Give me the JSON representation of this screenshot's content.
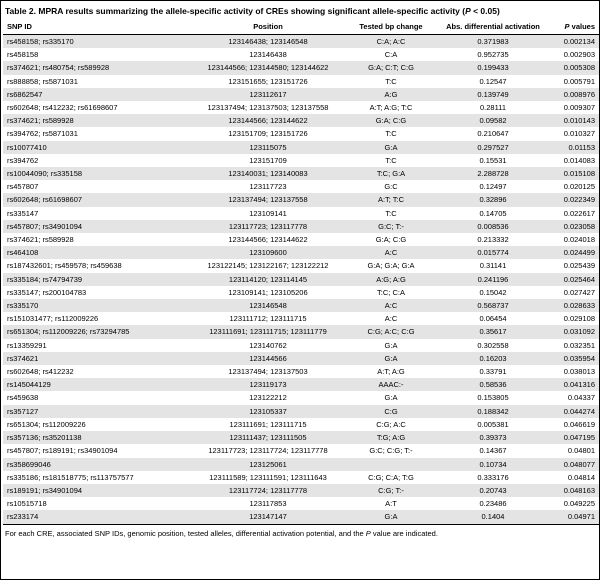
{
  "table": {
    "title_pre": "Table 2. MPRA results summarizing the allele-specific activity of CREs showing significant allele-specific activity (",
    "title_italic": "P",
    "title_post": " < 0.05)",
    "columns": {
      "snp": "SNP ID",
      "position": "Position",
      "tested": "Tested bp change",
      "abs": "Abs. differential activation",
      "p_italic": "P",
      "p_rest": " values"
    },
    "rows": [
      [
        "rs458158; rs335170",
        "123146438; 123146548",
        "C:A; A:C",
        "0.371983",
        "0.002134"
      ],
      [
        "rs458158",
        "123146438",
        "C:A",
        "0.952735",
        "0.002903"
      ],
      [
        "rs374621; rs480754; rs589928",
        "123144566; 123144580; 123144622",
        "G:A; C:T; C:G",
        "0.199433",
        "0.005308"
      ],
      [
        "rs888858; rs5871031",
        "123151655; 123151726",
        "T:C",
        "0.12547",
        "0.005791"
      ],
      [
        "rs6862547",
        "123112617",
        "A:G",
        "0.139749",
        "0.008976"
      ],
      [
        "rs602648; rs412232; rs61698607",
        "123137494; 123137503; 123137558",
        "A:T; A:G; T:C",
        "0.28111",
        "0.009307"
      ],
      [
        "rs374621; rs589928",
        "123144566; 123144622",
        "G:A; C:G",
        "0.09582",
        "0.010143"
      ],
      [
        "rs394762; rs5871031",
        "123151709; 123151726",
        "T:C",
        "0.210647",
        "0.010327"
      ],
      [
        "rs10077410",
        "123115075",
        "G:A",
        "0.297527",
        "0.01153"
      ],
      [
        "rs394762",
        "123151709",
        "T:C",
        "0.15531",
        "0.014083"
      ],
      [
        "rs10044090; rs335158",
        "123140031; 123140083",
        "T:C; G:A",
        "2.288728",
        "0.015108"
      ],
      [
        "rs457807",
        "123117723",
        "G:C",
        "0.12497",
        "0.020125"
      ],
      [
        "rs602648; rs61698607",
        "123137494; 123137558",
        "A:T; T:C",
        "0.32896",
        "0.022349"
      ],
      [
        "rs335147",
        "123109141",
        "T:C",
        "0.14705",
        "0.022617"
      ],
      [
        "rs457807; rs34901094",
        "123117723; 123117778",
        "G:C; T:-",
        "0.008536",
        "0.023058"
      ],
      [
        "rs374621; rs589928",
        "123144566; 123144622",
        "G:A; C:G",
        "0.213332",
        "0.024018"
      ],
      [
        "rs464108",
        "123109600",
        "A:C",
        "0.015774",
        "0.024499"
      ],
      [
        "rs187432601; rs459578; rs459638",
        "123122145; 123122167; 123122212",
        "G:A; G:A; G:A",
        "0.31141",
        "0.025439"
      ],
      [
        "rs335184; rs74794739",
        "123114120; 123114145",
        "A:G; A:G",
        "0.241196",
        "0.025464"
      ],
      [
        "rs335147; rs200104783",
        "123109141; 123105206",
        "T:C; C:A",
        "0.15042",
        "0.027427"
      ],
      [
        "rs335170",
        "123146548",
        "A:C",
        "0.568737",
        "0.028633"
      ],
      [
        "rs151031477; rs112009226",
        "123111712; 123111715",
        "A:C",
        "0.06454",
        "0.029108"
      ],
      [
        "rs651304; rs112009226; rs73294785",
        "123111691; 123111715; 123111779",
        "C:G; A:C; C:G",
        "0.35617",
        "0.031092"
      ],
      [
        "rs13359291",
        "123140762",
        "G:A",
        "0.302558",
        "0.032351"
      ],
      [
        "rs374621",
        "123144566",
        "G:A",
        "0.16203",
        "0.035954"
      ],
      [
        "rs602648; rs412232",
        "123137494; 123137503",
        "A:T; A:G",
        "0.33791",
        "0.038013"
      ],
      [
        "rs145044129",
        "123119173",
        "AAAC:-",
        "0.58536",
        "0.041316"
      ],
      [
        "rs459638",
        "123122212",
        "G:A",
        "0.153805",
        "0.04337"
      ],
      [
        "rs357127",
        "123105337",
        "C:G",
        "0.188342",
        "0.044274"
      ],
      [
        "rs651304; rs112009226",
        "123111691; 123111715",
        "C:G; A:C",
        "0.005381",
        "0.046619"
      ],
      [
        "rs357136; rs35201138",
        "123111437; 123111505",
        "T:G; A:G",
        "0.39373",
        "0.047195"
      ],
      [
        "rs457807; rs189191; rs34901094",
        "123117723; 123117724; 123117778",
        "G:C; C:G; T:-",
        "0.14367",
        "0.04801"
      ],
      [
        "rs358699046",
        "123125061",
        "",
        "0.10734",
        "0.048077"
      ],
      [
        "rs335186; rs181518775; rs113757577",
        "123111589; 123111591; 123111643",
        "C:G; C:A; T:G",
        "0.333176",
        "0.04814"
      ],
      [
        "rs189191; rs34901094",
        "123117724; 123117778",
        "C:G; T:-",
        "0.20743",
        "0.048163"
      ],
      [
        "rs10515718",
        "123117853",
        "A:T",
        "0.23486",
        "0.049225"
      ],
      [
        "rs233174",
        "123147147",
        "G:A",
        "0.1404",
        "0.04971"
      ]
    ],
    "footer_pre": "For each CRE, associated SNP IDs, genomic position, tested alleles, differential activation potential, and the ",
    "footer_italic": "P",
    "footer_post": " value are indicated."
  }
}
